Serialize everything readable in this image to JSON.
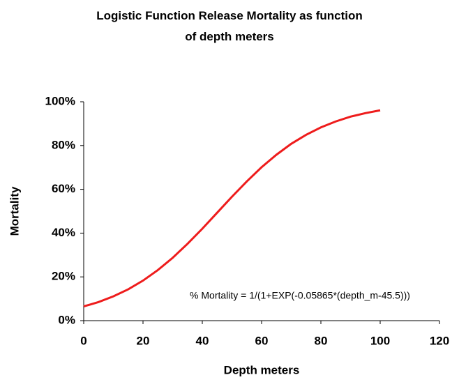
{
  "chart_data": {
    "type": "line",
    "title": "Logistic Function Release Mortality as function of depth meters",
    "x_label": "Depth meters",
    "y_label": "Mortality",
    "annotation": "% Mortality = 1/(1+EXP(-0.05865*(depth_m-45.5)))",
    "x": [
      0,
      5,
      10,
      15,
      20,
      25,
      30,
      35,
      40,
      45,
      50,
      55,
      60,
      65,
      70,
      75,
      80,
      85,
      90,
      95,
      100
    ],
    "series": [
      {
        "name": "Mortality",
        "color": "#ee1c1c",
        "values": [
          6.5,
          8.5,
          11.1,
          14.3,
          18.3,
          23.1,
          28.7,
          35.1,
          42.0,
          49.3,
          56.6,
          63.6,
          70.1,
          75.8,
          80.8,
          84.9,
          88.3,
          91.0,
          93.2,
          94.8,
          96.1
        ]
      }
    ],
    "xlim": [
      0,
      120
    ],
    "xticks": [
      0,
      20,
      40,
      60,
      80,
      100,
      120
    ],
    "ylim": [
      0,
      100
    ],
    "yticks": [
      {
        "value": 0,
        "label": "0%"
      },
      {
        "value": 20,
        "label": "20%"
      },
      {
        "value": 40,
        "label": "40%"
      },
      {
        "value": 60,
        "label": "60%"
      },
      {
        "value": 80,
        "label": "80%"
      },
      {
        "value": 100,
        "label": "100%"
      }
    ],
    "grid": false
  }
}
